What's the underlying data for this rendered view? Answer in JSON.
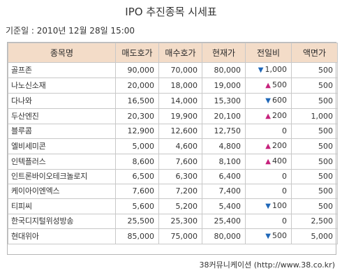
{
  "title": "IPO 추진종목 시세표",
  "basis": "기준일 : 2010년 12월 28일 15:00",
  "source": "38커뮤니케이션 (http://www.38.co.kr)",
  "headers": [
    "종목명",
    "매도호가",
    "매수호가",
    "현재가",
    "전일비",
    "액면가"
  ],
  "rows": [
    {
      "name": "골프존",
      "ask": "90,000",
      "bid": "70,000",
      "price": "80,000",
      "change": "1,000",
      "direction": "down",
      "par": "500"
    },
    {
      "name": "나노신소재",
      "ask": "20,000",
      "bid": "18,000",
      "price": "19,000",
      "change": "500",
      "direction": "up",
      "par": "500"
    },
    {
      "name": "다나와",
      "ask": "16,500",
      "bid": "14,000",
      "price": "15,300",
      "change": "600",
      "direction": "down",
      "par": "500"
    },
    {
      "name": "두산엔진",
      "ask": "20,300",
      "bid": "19,900",
      "price": "20,100",
      "change": "200",
      "direction": "up",
      "par": "1,000"
    },
    {
      "name": "블루콤",
      "ask": "12,900",
      "bid": "12,600",
      "price": "12,750",
      "change": "0",
      "direction": "none",
      "par": "500"
    },
    {
      "name": "엘비세미콘",
      "ask": "5,000",
      "bid": "4,600",
      "price": "4,800",
      "change": "200",
      "direction": "up",
      "par": "500"
    },
    {
      "name": "인텍플러스",
      "ask": "8,600",
      "bid": "7,600",
      "price": "8,100",
      "change": "400",
      "direction": "up",
      "par": "500"
    },
    {
      "name": "인트론바이오테크놀로지",
      "ask": "6,500",
      "bid": "6,300",
      "price": "6,400",
      "change": "0",
      "direction": "none",
      "par": "500"
    },
    {
      "name": "케이아이엔엑스",
      "ask": "7,600",
      "bid": "7,200",
      "price": "7,400",
      "change": "0",
      "direction": "none",
      "par": "500"
    },
    {
      "name": "티피씨",
      "ask": "5,600",
      "bid": "5,200",
      "price": "5,400",
      "change": "100",
      "direction": "down",
      "par": "500"
    },
    {
      "name": "한국디지털위성방송",
      "ask": "25,500",
      "bid": "25,300",
      "price": "25,400",
      "change": "0",
      "direction": "none",
      "par": "2,500"
    },
    {
      "name": "현대위아",
      "ask": "85,000",
      "bid": "75,000",
      "price": "80,000",
      "change": "500",
      "direction": "down",
      "par": "5,000"
    }
  ]
}
